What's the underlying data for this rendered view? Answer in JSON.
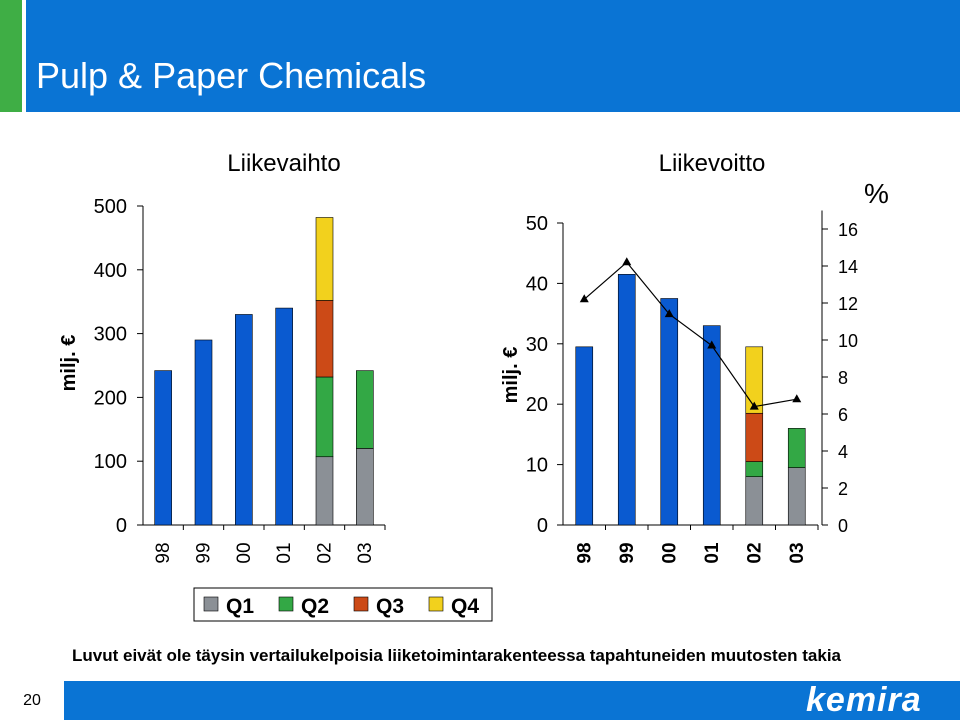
{
  "slide": {
    "title": "Pulp & Paper Chemicals",
    "footnote": "Luvut eivät ole täysin vertailukelpoisia liiketoimintarakenteessa tapahtuneiden muutosten takia",
    "page_number": "20",
    "brand": "kemira"
  },
  "colors": {
    "header_blue": "#0a74d4",
    "annual_bar": "#0a5ad0",
    "Q1": "#8b9096",
    "Q2": "#33a845",
    "Q3": "#cc4a17",
    "Q4": "#f2d11d"
  },
  "legend": [
    "Q1",
    "Q2",
    "Q3",
    "Q4"
  ],
  "chart_data": [
    {
      "type": "bar",
      "title": "Liikevaihto",
      "ylabel": "milj. €",
      "ylim": [
        0,
        500
      ],
      "yticks": [
        0,
        100,
        200,
        300,
        400,
        500
      ],
      "categories": [
        "98",
        "99",
        "00",
        "01",
        "02",
        "03"
      ],
      "annual": [
        242,
        290,
        330,
        340,
        null,
        null
      ],
      "quarterly_stacks": {
        "02": [
          107,
          125,
          120,
          130
        ],
        "03": [
          120,
          122,
          null,
          null
        ]
      },
      "legend_placement": "bottom"
    },
    {
      "type": "bar",
      "title": "Liikevoitto",
      "ylabel": "milj. €",
      "ylim": [
        0,
        50
      ],
      "yticks": [
        0,
        10,
        20,
        30,
        40,
        50
      ],
      "categories": [
        "98",
        "99",
        "00",
        "01",
        "02",
        "03"
      ],
      "annual": [
        29.5,
        41.5,
        37.5,
        33.0,
        null,
        null
      ],
      "quarterly_stacks": {
        "02": [
          8.0,
          2.5,
          8.0,
          11.0
        ],
        "03": [
          9.5,
          6.5,
          null,
          null
        ]
      },
      "secondary_axis": {
        "label": "%",
        "ylim": [
          0,
          17
        ],
        "yticks": [
          0,
          2,
          4,
          6,
          8,
          10,
          12,
          14,
          16
        ],
        "line": [
          12.2,
          14.2,
          11.4,
          9.7,
          6.4,
          6.8
        ]
      },
      "legend_placement": "bottom"
    }
  ]
}
